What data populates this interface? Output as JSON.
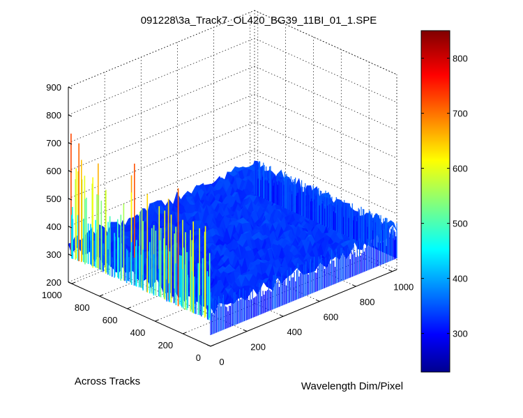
{
  "chart_data": {
    "type": "surface",
    "title": "091228\\3a_Track7_OL420_BG39_11BI_01_1.SPE",
    "xlabel": "Wavelength Dim/Pixel",
    "ylabel": "Across Tracks",
    "zlabel": "",
    "xlim": [
      0,
      1024
    ],
    "ylim": [
      0,
      1024
    ],
    "zlim": [
      200,
      900
    ],
    "xticks": [
      0,
      200,
      400,
      600,
      800,
      1000
    ],
    "yticks": [
      0,
      200,
      400,
      600,
      800,
      1000
    ],
    "zticks": [
      200,
      300,
      400,
      500,
      600,
      700,
      800,
      900
    ],
    "grid": true,
    "colormap": "jet",
    "colorbar": {
      "range": [
        230,
        850
      ],
      "ticks": [
        300,
        400,
        500,
        600,
        700,
        800
      ],
      "placement": "right"
    },
    "surface_summary": {
      "baseline_level": 330,
      "spike_edge": "wavelength pixel 0",
      "spike_max": 740
    }
  }
}
